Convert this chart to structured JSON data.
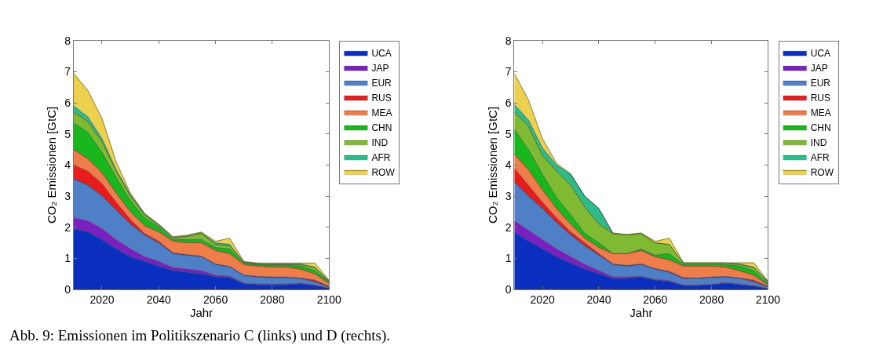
{
  "chart_data": [
    {
      "type": "area",
      "stacked": true,
      "xlabel": "Jahr",
      "ylabel": "CO₂ Emissionen [GtC]",
      "x": [
        2010,
        2015,
        2020,
        2025,
        2030,
        2035,
        2040,
        2045,
        2050,
        2055,
        2060,
        2065,
        2070,
        2075,
        2080,
        2085,
        2090,
        2095,
        2100
      ],
      "xlim": [
        2010,
        2100
      ],
      "xticks": [
        2020,
        2040,
        2060,
        2080,
        2100
      ],
      "ylim": [
        0,
        8
      ],
      "yticks": [
        0,
        1,
        2,
        3,
        4,
        5,
        6,
        7,
        8
      ],
      "legend": "right",
      "annotations": [
        "Abb. 9: Emissionen im Politikszenario C (links) und D (rechts)."
      ],
      "series": [
        {
          "name": "UCA",
          "color": "#0a2fbf",
          "values": [
            1.95,
            1.85,
            1.6,
            1.3,
            1.05,
            0.9,
            0.75,
            0.6,
            0.55,
            0.5,
            0.4,
            0.38,
            0.18,
            0.15,
            0.15,
            0.15,
            0.18,
            0.12,
            0.03
          ]
        },
        {
          "name": "JAP",
          "color": "#7a1fc0",
          "values": [
            0.35,
            0.35,
            0.35,
            0.3,
            0.25,
            0.15,
            0.15,
            0.1,
            0.1,
            0.1,
            0.05,
            0.04,
            0.02,
            0.02,
            0.02,
            0.02,
            0.02,
            0.02,
            0.01
          ]
        },
        {
          "name": "EUR",
          "color": "#4f7fc6",
          "values": [
            1.25,
            1.15,
            1.05,
            0.95,
            0.8,
            0.7,
            0.6,
            0.45,
            0.45,
            0.45,
            0.35,
            0.3,
            0.25,
            0.23,
            0.21,
            0.21,
            0.15,
            0.11,
            0.04
          ]
        },
        {
          "name": "RUS",
          "color": "#e81c1c",
          "values": [
            0.45,
            0.45,
            0.4,
            0.25,
            0.15,
            0.05,
            0.05,
            0.03,
            0.02,
            0.02,
            0.02,
            0.02,
            0.01,
            0.02,
            0.02,
            0.02,
            0.02,
            0.05,
            0.02
          ]
        },
        {
          "name": "MEA",
          "color": "#ee7d4a",
          "values": [
            0.5,
            0.4,
            0.35,
            0.3,
            0.25,
            0.25,
            0.3,
            0.37,
            0.38,
            0.43,
            0.43,
            0.41,
            0.34,
            0.33,
            0.32,
            0.32,
            0.28,
            0.2,
            0.1
          ]
        },
        {
          "name": "CHN",
          "color": "#18b81c",
          "values": [
            0.85,
            0.85,
            0.65,
            0.5,
            0.35,
            0.25,
            0.15,
            0.05,
            0.1,
            0.1,
            0.1,
            0.15,
            0.05,
            0.05,
            0.06,
            0.06,
            0.1,
            0.1,
            0.05
          ]
        },
        {
          "name": "IND",
          "color": "#7fba32",
          "values": [
            0.35,
            0.35,
            0.35,
            0.2,
            0.15,
            0.1,
            0.05,
            0.05,
            0.1,
            0.2,
            0.1,
            0.1,
            0.03,
            0.02,
            0.02,
            0.02,
            0.05,
            0.1,
            0.02
          ]
        },
        {
          "name": "AFR",
          "color": "#2fba8a",
          "values": [
            0.2,
            0.15,
            0.1,
            0.05,
            0.05,
            0.02,
            0.03,
            0.02,
            0.02,
            0.02,
            0.05,
            0.05,
            0,
            0.01,
            0.02,
            0.02,
            0.02,
            0.02,
            0.01
          ]
        },
        {
          "name": "ROW",
          "color": "#ecd04e",
          "values": [
            1.05,
            0.85,
            0.65,
            0.25,
            0.05,
            0.03,
            0.02,
            0.03,
            0.03,
            0.03,
            0.05,
            0.2,
            0.02,
            0.02,
            0.03,
            0.03,
            0.03,
            0.13,
            0.02
          ]
        }
      ]
    },
    {
      "type": "area",
      "stacked": true,
      "xlabel": "Jahr",
      "ylabel": "CO₂ Emissionen [GtC]",
      "x": [
        2010,
        2015,
        2020,
        2025,
        2030,
        2035,
        2040,
        2045,
        2050,
        2055,
        2060,
        2065,
        2070,
        2075,
        2080,
        2085,
        2090,
        2095,
        2100
      ],
      "xlim": [
        2010,
        2100
      ],
      "xticks": [
        2020,
        2040,
        2060,
        2080,
        2100
      ],
      "ylim": [
        0,
        8
      ],
      "yticks": [
        0,
        1,
        2,
        3,
        4,
        5,
        6,
        7,
        8
      ],
      "legend": "right",
      "series": [
        {
          "name": "UCA",
          "color": "#0a2fbf",
          "values": [
            1.85,
            1.55,
            1.3,
            1.05,
            0.85,
            0.65,
            0.5,
            0.35,
            0.35,
            0.4,
            0.3,
            0.25,
            0.12,
            0.12,
            0.15,
            0.2,
            0.15,
            0.1,
            0.02
          ]
        },
        {
          "name": "JAP",
          "color": "#7a1fc0",
          "values": [
            0.35,
            0.35,
            0.3,
            0.25,
            0.2,
            0.15,
            0.1,
            0.05,
            0.05,
            0.02,
            0.02,
            0.03,
            0.02,
            0.02,
            0.01,
            0.02,
            0.02,
            0.02,
            0.01
          ]
        },
        {
          "name": "EUR",
          "color": "#4f7fc6",
          "values": [
            1.25,
            1.1,
            1.0,
            0.85,
            0.7,
            0.6,
            0.5,
            0.4,
            0.35,
            0.38,
            0.33,
            0.27,
            0.21,
            0.21,
            0.22,
            0.18,
            0.18,
            0.13,
            0.05
          ]
        },
        {
          "name": "RUS",
          "color": "#e81c1c",
          "values": [
            0.45,
            0.35,
            0.2,
            0.15,
            0.1,
            0.1,
            0.05,
            0.02,
            0.02,
            0.02,
            0.02,
            0.03,
            0.03,
            0.02,
            0.02,
            0.02,
            0.02,
            0.05,
            0.02
          ]
        },
        {
          "name": "MEA",
          "color": "#ee7d4a",
          "values": [
            0.45,
            0.5,
            0.4,
            0.3,
            0.25,
            0.15,
            0.2,
            0.33,
            0.38,
            0.43,
            0.38,
            0.37,
            0.37,
            0.38,
            0.35,
            0.3,
            0.23,
            0.15,
            0.05
          ]
        },
        {
          "name": "CHN",
          "color": "#18b81c",
          "values": [
            0.8,
            0.65,
            0.5,
            0.35,
            0.3,
            0.15,
            0.15,
            0,
            0,
            0.05,
            0.05,
            0.2,
            0.05,
            0.05,
            0.05,
            0.08,
            0.15,
            0.15,
            0.05
          ]
        },
        {
          "name": "IND",
          "color": "#7fba32",
          "values": [
            0.55,
            0.75,
            0.6,
            0.85,
            0.95,
            0.85,
            0.6,
            0.65,
            0.6,
            0.5,
            0.4,
            0.3,
            0.05,
            0.05,
            0.05,
            0.05,
            0.05,
            0.1,
            0.05
          ]
        },
        {
          "name": "AFR",
          "color": "#2fba8a",
          "values": [
            0.25,
            0.2,
            0.25,
            0.2,
            0.35,
            0.35,
            0.5,
            0,
            0,
            0,
            0,
            0,
            0,
            0,
            0,
            0,
            0.02,
            0.02,
            0.01
          ]
        },
        {
          "name": "ROW",
          "color": "#ecd04e",
          "values": [
            1.0,
            0.65,
            0.3,
            0.05,
            0.02,
            0,
            0,
            0.02,
            0.02,
            0.02,
            0.05,
            0.2,
            0.01,
            0.01,
            0.01,
            0.01,
            0.04,
            0.14,
            0.01
          ]
        }
      ]
    }
  ]
}
